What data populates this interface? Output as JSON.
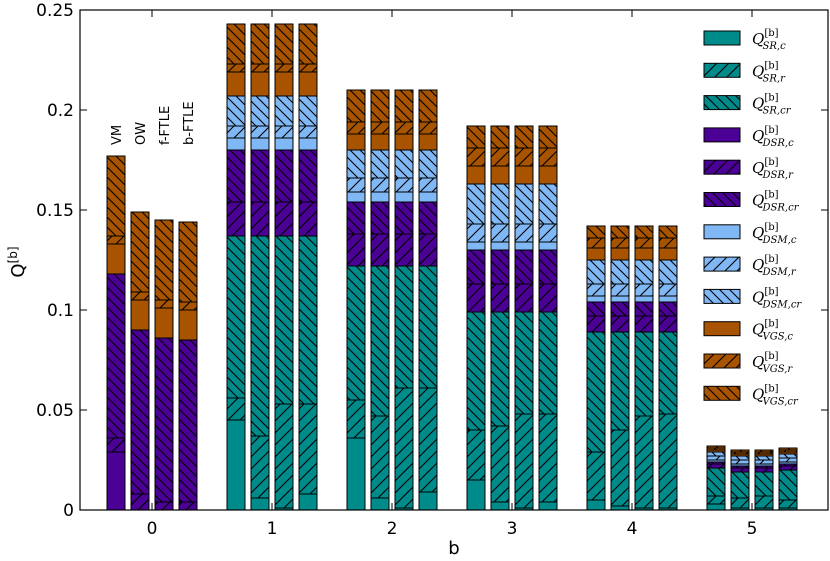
{
  "chart_data": {
    "type": "bar",
    "title": "",
    "xlabel": "b",
    "ylabel": "Q",
    "ylabel_sup": "[b]",
    "ylim": [
      0,
      0.25
    ],
    "yticks": [
      "0",
      "0.05",
      "0.1",
      "0.15",
      "0.2",
      "0.25"
    ],
    "categories": [
      "0",
      "1",
      "2",
      "3",
      "4",
      "5"
    ],
    "methods": [
      "VM",
      "OW",
      "f-FTLE",
      "b-FTLE"
    ],
    "legend_position": "right",
    "series": [
      {
        "name": "SR,c",
        "fill": "#008b8b",
        "hatch": "none",
        "values": [
          [
            0.0,
            0.0,
            0.0,
            0.0
          ],
          [
            0.045,
            0.006,
            0.001,
            0.008
          ],
          [
            0.036,
            0.006,
            0.001,
            0.009
          ],
          [
            0.015,
            0.004,
            0.001,
            0.004
          ],
          [
            0.005,
            0.002,
            0.001,
            0.001
          ],
          [
            0.003,
            0.001,
            0.001,
            0.001
          ]
        ]
      },
      {
        "name": "SR,r",
        "fill": "#008b8b",
        "hatch": "right",
        "values": [
          [
            0.0,
            0.0,
            0.0,
            0.0
          ],
          [
            0.011,
            0.031,
            0.052,
            0.045
          ],
          [
            0.019,
            0.041,
            0.06,
            0.052
          ],
          [
            0.025,
            0.038,
            0.047,
            0.044
          ],
          [
            0.024,
            0.038,
            0.046,
            0.047
          ],
          [
            0.004,
            0.005,
            0.006,
            0.004
          ]
        ]
      },
      {
        "name": "SR,cr",
        "fill": "#008b8b",
        "hatch": "left",
        "values": [
          [
            0.0,
            0.0,
            0.0,
            0.0
          ],
          [
            0.081,
            0.1,
            0.084,
            0.084
          ],
          [
            0.067,
            0.075,
            0.061,
            0.061
          ],
          [
            0.059,
            0.057,
            0.051,
            0.051
          ],
          [
            0.06,
            0.049,
            0.042,
            0.041
          ],
          [
            0.014,
            0.013,
            0.012,
            0.015
          ]
        ]
      },
      {
        "name": "DSR,c",
        "fill": "#4b0096",
        "hatch": "none",
        "values": [
          [
            0.029,
            0.0,
            0.0,
            0.0
          ],
          [
            0.0,
            0.0,
            0.0,
            0.0
          ],
          [
            0.0,
            0.0,
            0.0,
            0.0
          ],
          [
            0.0,
            0.0,
            0.0,
            0.0
          ],
          [
            0.0,
            0.0,
            0.0,
            0.0
          ],
          [
            0.0,
            0.0,
            0.0,
            0.0
          ]
        ]
      },
      {
        "name": "DSR,r",
        "fill": "#4b0096",
        "hatch": "right",
        "values": [
          [
            0.007,
            0.008,
            0.004,
            0.004
          ],
          [
            0.017,
            0.017,
            0.017,
            0.017
          ],
          [
            0.016,
            0.016,
            0.016,
            0.016
          ],
          [
            0.014,
            0.014,
            0.014,
            0.014
          ],
          [
            0.008,
            0.008,
            0.008,
            0.008
          ],
          [
            0.002,
            0.002,
            0.002,
            0.002
          ]
        ]
      },
      {
        "name": "DSR,cr",
        "fill": "#4b0096",
        "hatch": "left",
        "values": [
          [
            0.082,
            0.082,
            0.082,
            0.081
          ],
          [
            0.026,
            0.026,
            0.026,
            0.026
          ],
          [
            0.016,
            0.016,
            0.016,
            0.016
          ],
          [
            0.017,
            0.017,
            0.017,
            0.017
          ],
          [
            0.007,
            0.007,
            0.007,
            0.007
          ],
          [
            0.001,
            0.001,
            0.001,
            0.001
          ]
        ]
      },
      {
        "name": "DSM,c",
        "fill": "#7fb8f5",
        "hatch": "none",
        "values": [
          [
            0.0,
            0.0,
            0.0,
            0.0
          ],
          [
            0.006,
            0.006,
            0.006,
            0.006
          ],
          [
            0.005,
            0.005,
            0.005,
            0.005
          ],
          [
            0.004,
            0.004,
            0.004,
            0.004
          ],
          [
            0.003,
            0.003,
            0.003,
            0.003
          ],
          [
            0.001,
            0.001,
            0.001,
            0.001
          ]
        ]
      },
      {
        "name": "DSM,r",
        "fill": "#7fb8f5",
        "hatch": "right",
        "values": [
          [
            0.0,
            0.0,
            0.0,
            0.0
          ],
          [
            0.006,
            0.006,
            0.006,
            0.006
          ],
          [
            0.007,
            0.007,
            0.007,
            0.007
          ],
          [
            0.009,
            0.009,
            0.009,
            0.009
          ],
          [
            0.006,
            0.006,
            0.006,
            0.006
          ],
          [
            0.002,
            0.002,
            0.002,
            0.002
          ]
        ]
      },
      {
        "name": "DSM,cr",
        "fill": "#7fb8f5",
        "hatch": "left",
        "values": [
          [
            0.0,
            0.0,
            0.0,
            0.0
          ],
          [
            0.015,
            0.015,
            0.015,
            0.015
          ],
          [
            0.014,
            0.014,
            0.014,
            0.014
          ],
          [
            0.02,
            0.02,
            0.02,
            0.02
          ],
          [
            0.012,
            0.012,
            0.012,
            0.012
          ],
          [
            0.002,
            0.002,
            0.002,
            0.002
          ]
        ]
      },
      {
        "name": "VGS,c",
        "fill": "#a85300",
        "hatch": "none",
        "values": [
          [
            0.015,
            0.015,
            0.015,
            0.015
          ],
          [
            0.012,
            0.012,
            0.012,
            0.012
          ],
          [
            0.008,
            0.008,
            0.008,
            0.008
          ],
          [
            0.009,
            0.009,
            0.009,
            0.009
          ],
          [
            0.006,
            0.006,
            0.006,
            0.006
          ],
          [
            0.001,
            0.001,
            0.001,
            0.001
          ]
        ]
      },
      {
        "name": "VGS,r",
        "fill": "#a85300",
        "hatch": "right",
        "values": [
          [
            0.004,
            0.004,
            0.004,
            0.004
          ],
          [
            0.004,
            0.004,
            0.004,
            0.004
          ],
          [
            0.006,
            0.006,
            0.006,
            0.006
          ],
          [
            0.009,
            0.009,
            0.009,
            0.009
          ],
          [
            0.005,
            0.005,
            0.005,
            0.005
          ],
          [
            0.001,
            0.001,
            0.001,
            0.001
          ]
        ]
      },
      {
        "name": "VGS,cr",
        "fill": "#a85300",
        "hatch": "left",
        "values": [
          [
            0.04,
            0.04,
            0.04,
            0.04
          ],
          [
            0.02,
            0.02,
            0.02,
            0.02
          ],
          [
            0.016,
            0.016,
            0.016,
            0.016
          ],
          [
            0.011,
            0.011,
            0.011,
            0.011
          ],
          [
            0.006,
            0.006,
            0.006,
            0.006
          ],
          [
            0.001,
            0.001,
            0.001,
            0.001
          ]
        ]
      }
    ]
  }
}
